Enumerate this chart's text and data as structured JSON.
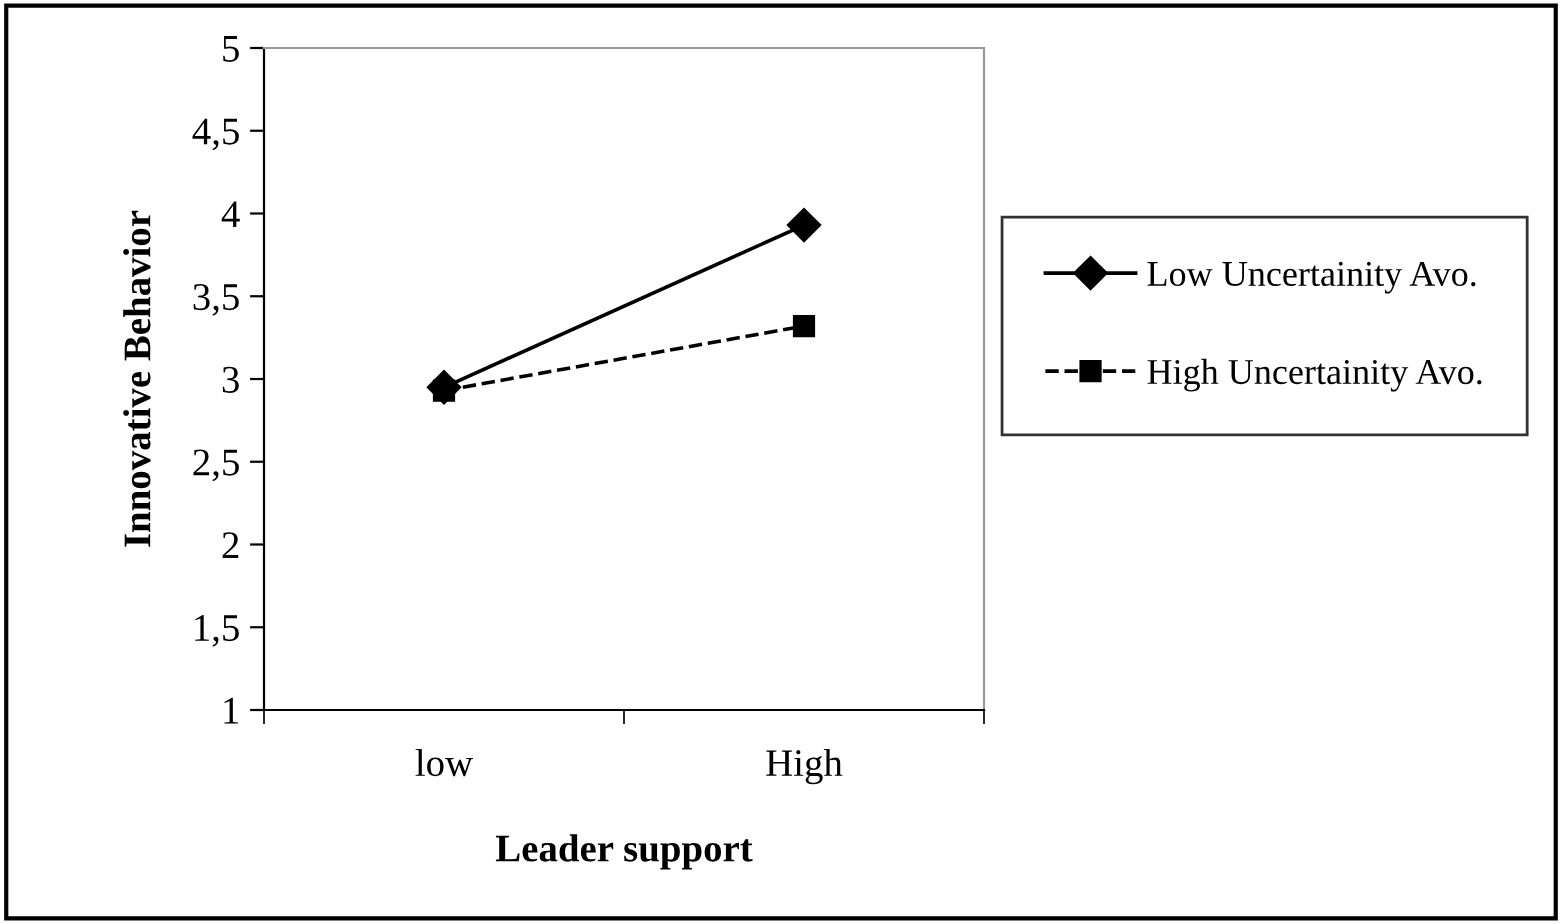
{
  "chart_data": {
    "type": "line",
    "xlabel": "Leader support",
    "ylabel": "Innovative Behavior",
    "categories": [
      "low",
      "High"
    ],
    "series": [
      {
        "name": "Low Uncertainity Avo.",
        "color": "#000000",
        "values": [
          2.95,
          3.93
        ],
        "marker": "diamond",
        "line_style": "solid"
      },
      {
        "name": "High Uncertainity Avo.",
        "color": "#000000",
        "values": [
          2.93,
          3.32
        ],
        "marker": "square",
        "line_style": "dashed"
      }
    ],
    "ylim": [
      1,
      5
    ],
    "yticks": [
      1,
      {
        "value": 1.5,
        "label": "1,5"
      },
      2,
      {
        "value": 2.5,
        "label": "2,5"
      },
      3,
      {
        "value": 3.5,
        "label": "3,5"
      },
      4,
      {
        "value": 4.5,
        "label": "4,5"
      },
      5
    ],
    "grid": false,
    "legend": "right"
  }
}
